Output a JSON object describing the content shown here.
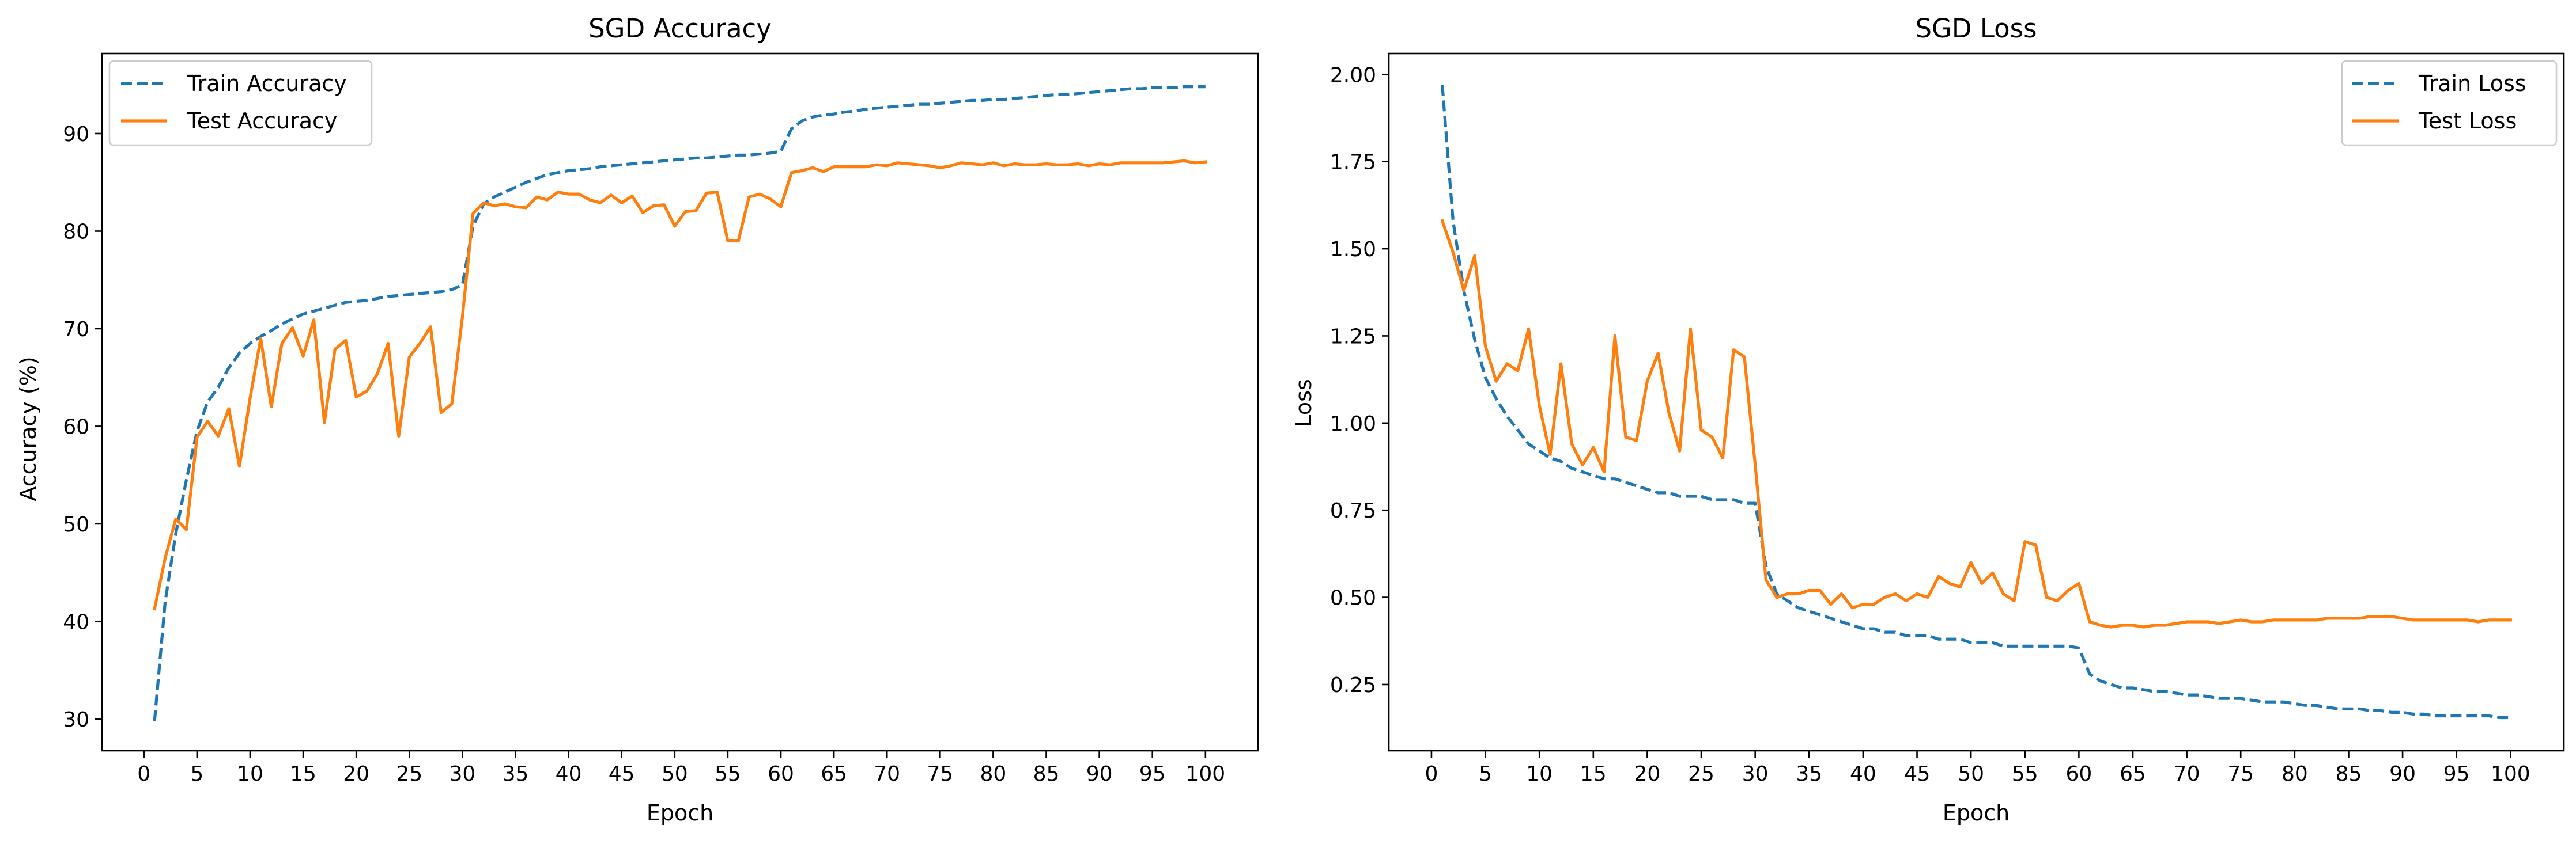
{
  "chart_data": [
    {
      "type": "line",
      "title": "SGD Accuracy",
      "xlabel": "Epoch",
      "ylabel": "Accuracy (%)",
      "xlim": [
        -3.95,
        104.95
      ],
      "ylim": [
        26.75,
        98.2
      ],
      "xticks": [
        0,
        5,
        10,
        15,
        20,
        25,
        30,
        35,
        40,
        45,
        50,
        55,
        60,
        65,
        70,
        75,
        80,
        85,
        90,
        95,
        100
      ],
      "yticks": [
        30,
        40,
        50,
        60,
        70,
        80,
        90
      ],
      "legend": "top-left",
      "grid": false,
      "x": [
        1,
        2,
        3,
        4,
        5,
        6,
        7,
        8,
        9,
        10,
        11,
        12,
        13,
        14,
        15,
        16,
        17,
        18,
        19,
        20,
        21,
        22,
        23,
        24,
        25,
        26,
        27,
        28,
        29,
        30,
        31,
        32,
        33,
        34,
        35,
        36,
        37,
        38,
        39,
        40,
        41,
        42,
        43,
        44,
        45,
        46,
        47,
        48,
        49,
        50,
        51,
        52,
        53,
        54,
        55,
        56,
        57,
        58,
        59,
        60,
        61,
        62,
        63,
        64,
        65,
        66,
        67,
        68,
        69,
        70,
        71,
        72,
        73,
        74,
        75,
        76,
        77,
        78,
        79,
        80,
        81,
        82,
        83,
        84,
        85,
        86,
        87,
        88,
        89,
        90,
        91,
        92,
        93,
        94,
        95,
        96,
        97,
        98,
        99,
        100
      ],
      "series": [
        {
          "name": "Train Accuracy",
          "color": "#1f77b4",
          "dash": "dashed",
          "values": [
            29.8,
            42.0,
            49.0,
            54.5,
            59.5,
            62.5,
            64.0,
            66.0,
            67.5,
            68.5,
            69.2,
            69.8,
            70.5,
            71.0,
            71.5,
            71.8,
            72.1,
            72.4,
            72.7,
            72.8,
            72.9,
            73.1,
            73.3,
            73.4,
            73.5,
            73.6,
            73.7,
            73.8,
            74.0,
            74.5,
            80.5,
            82.8,
            83.5,
            84.0,
            84.5,
            85.0,
            85.4,
            85.8,
            86.0,
            86.2,
            86.3,
            86.4,
            86.6,
            86.7,
            86.8,
            86.9,
            87.0,
            87.1,
            87.2,
            87.3,
            87.4,
            87.5,
            87.5,
            87.6,
            87.7,
            87.8,
            87.8,
            87.9,
            88.0,
            88.2,
            90.5,
            91.3,
            91.7,
            91.9,
            92.0,
            92.2,
            92.3,
            92.5,
            92.6,
            92.7,
            92.8,
            92.9,
            93.0,
            93.0,
            93.1,
            93.2,
            93.3,
            93.4,
            93.4,
            93.5,
            93.5,
            93.6,
            93.7,
            93.8,
            93.9,
            94.0,
            94.0,
            94.1,
            94.2,
            94.3,
            94.4,
            94.5,
            94.6,
            94.6,
            94.7,
            94.7,
            94.7,
            94.8,
            94.8,
            94.8
          ]
        },
        {
          "name": "Test Accuracy",
          "color": "#ff7f0e",
          "dash": "solid",
          "values": [
            41.3,
            46.5,
            50.5,
            49.4,
            58.9,
            60.5,
            59.0,
            61.8,
            55.9,
            62.9,
            69.0,
            62.0,
            68.5,
            70.1,
            67.2,
            70.9,
            60.4,
            67.9,
            68.8,
            63.0,
            63.6,
            65.4,
            68.5,
            59.0,
            67.1,
            68.5,
            70.2,
            61.4,
            62.3,
            71.2,
            81.8,
            82.9,
            82.6,
            82.8,
            82.5,
            82.4,
            83.5,
            83.2,
            84.0,
            83.8,
            83.8,
            83.2,
            82.9,
            83.7,
            82.9,
            83.6,
            81.9,
            82.6,
            82.7,
            80.5,
            82.0,
            82.1,
            83.9,
            84.0,
            79.0,
            79.0,
            83.5,
            83.8,
            83.3,
            82.5,
            86.0,
            86.2,
            86.5,
            86.1,
            86.6,
            86.6,
            86.6,
            86.6,
            86.8,
            86.7,
            87.0,
            86.9,
            86.8,
            86.7,
            86.5,
            86.7,
            87.0,
            86.9,
            86.8,
            87.0,
            86.7,
            86.9,
            86.8,
            86.8,
            86.9,
            86.8,
            86.8,
            86.9,
            86.7,
            86.9,
            86.8,
            87.0,
            87.0,
            87.0,
            87.0,
            87.0,
            87.1,
            87.2,
            87.0,
            87.1
          ]
        }
      ]
    },
    {
      "type": "line",
      "title": "SGD Loss",
      "xlabel": "Epoch",
      "ylabel": "Loss",
      "xlim": [
        -3.95,
        104.95
      ],
      "ylim": [
        0.06,
        2.06
      ],
      "xticks": [
        0,
        5,
        10,
        15,
        20,
        25,
        30,
        35,
        40,
        45,
        50,
        55,
        60,
        65,
        70,
        75,
        80,
        85,
        90,
        95,
        100
      ],
      "yticks": [
        0.25,
        0.5,
        0.75,
        1.0,
        1.25,
        1.5,
        1.75,
        2.0
      ],
      "ytick_labels": [
        "0.25",
        "0.50",
        "0.75",
        "1.00",
        "1.25",
        "1.50",
        "1.75",
        "2.00"
      ],
      "legend": "top-right",
      "grid": false,
      "x": [
        1,
        2,
        3,
        4,
        5,
        6,
        7,
        8,
        9,
        10,
        11,
        12,
        13,
        14,
        15,
        16,
        17,
        18,
        19,
        20,
        21,
        22,
        23,
        24,
        25,
        26,
        27,
        28,
        29,
        30,
        31,
        32,
        33,
        34,
        35,
        36,
        37,
        38,
        39,
        40,
        41,
        42,
        43,
        44,
        45,
        46,
        47,
        48,
        49,
        50,
        51,
        52,
        53,
        54,
        55,
        56,
        57,
        58,
        59,
        60,
        61,
        62,
        63,
        64,
        65,
        66,
        67,
        68,
        69,
        70,
        71,
        72,
        73,
        74,
        75,
        76,
        77,
        78,
        79,
        80,
        81,
        82,
        83,
        84,
        85,
        86,
        87,
        88,
        89,
        90,
        91,
        92,
        93,
        94,
        95,
        96,
        97,
        98,
        99,
        100
      ],
      "series": [
        {
          "name": "Train Loss",
          "color": "#1f77b4",
          "dash": "dashed",
          "values": [
            1.97,
            1.58,
            1.38,
            1.24,
            1.13,
            1.07,
            1.02,
            0.98,
            0.94,
            0.92,
            0.9,
            0.89,
            0.87,
            0.86,
            0.85,
            0.84,
            0.84,
            0.83,
            0.82,
            0.81,
            0.8,
            0.8,
            0.79,
            0.79,
            0.79,
            0.78,
            0.78,
            0.78,
            0.77,
            0.77,
            0.59,
            0.51,
            0.49,
            0.47,
            0.46,
            0.45,
            0.44,
            0.43,
            0.42,
            0.41,
            0.41,
            0.4,
            0.4,
            0.39,
            0.39,
            0.39,
            0.38,
            0.38,
            0.38,
            0.37,
            0.37,
            0.37,
            0.36,
            0.36,
            0.36,
            0.36,
            0.36,
            0.36,
            0.36,
            0.355,
            0.28,
            0.26,
            0.25,
            0.24,
            0.24,
            0.235,
            0.23,
            0.23,
            0.225,
            0.22,
            0.22,
            0.215,
            0.21,
            0.21,
            0.21,
            0.205,
            0.2,
            0.2,
            0.2,
            0.195,
            0.19,
            0.19,
            0.185,
            0.18,
            0.18,
            0.18,
            0.175,
            0.175,
            0.17,
            0.17,
            0.165,
            0.165,
            0.16,
            0.16,
            0.16,
            0.16,
            0.16,
            0.16,
            0.155,
            0.155
          ]
        },
        {
          "name": "Test Loss",
          "color": "#ff7f0e",
          "dash": "solid",
          "values": [
            1.58,
            1.49,
            1.38,
            1.48,
            1.22,
            1.12,
            1.17,
            1.15,
            1.27,
            1.05,
            0.91,
            1.17,
            0.94,
            0.88,
            0.93,
            0.86,
            1.25,
            0.96,
            0.95,
            1.12,
            1.2,
            1.03,
            0.92,
            1.27,
            0.98,
            0.96,
            0.9,
            1.21,
            1.19,
            0.88,
            0.55,
            0.5,
            0.51,
            0.51,
            0.52,
            0.52,
            0.48,
            0.51,
            0.47,
            0.48,
            0.48,
            0.5,
            0.51,
            0.49,
            0.51,
            0.5,
            0.56,
            0.54,
            0.53,
            0.6,
            0.54,
            0.57,
            0.51,
            0.49,
            0.66,
            0.65,
            0.5,
            0.49,
            0.52,
            0.54,
            0.43,
            0.42,
            0.415,
            0.42,
            0.42,
            0.415,
            0.42,
            0.42,
            0.425,
            0.43,
            0.43,
            0.43,
            0.425,
            0.43,
            0.435,
            0.43,
            0.43,
            0.435,
            0.435,
            0.435,
            0.435,
            0.435,
            0.44,
            0.44,
            0.44,
            0.44,
            0.445,
            0.445,
            0.445,
            0.44,
            0.435,
            0.435,
            0.435,
            0.435,
            0.435,
            0.435,
            0.43,
            0.435,
            0.435,
            0.435
          ]
        }
      ]
    }
  ]
}
